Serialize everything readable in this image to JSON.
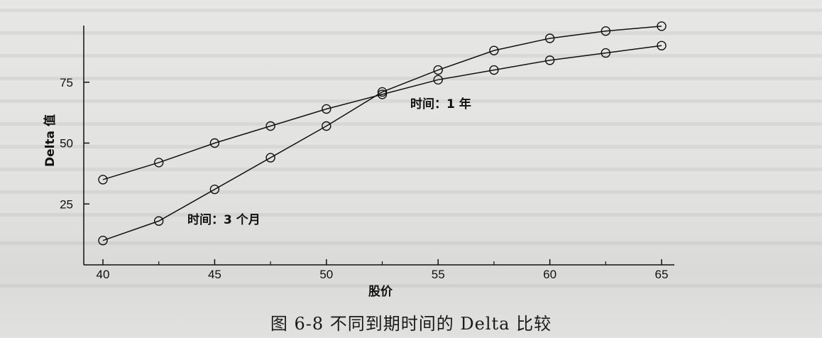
{
  "caption": "图 6-8   不同到期时间的 Delta 比较",
  "chart_data": {
    "type": "line",
    "xlabel": "股价",
    "ylabel": "Delta 值",
    "xlim": [
      40,
      65
    ],
    "ylim": [
      0,
      100
    ],
    "xticks": [
      40,
      45,
      50,
      55,
      60,
      65
    ],
    "yticks": [
      25,
      50,
      75
    ],
    "grid": false,
    "legend": "none",
    "series": [
      {
        "name": "时间：1 年",
        "x": [
          40,
          42.5,
          45,
          47.5,
          50,
          52.5,
          55,
          57.5,
          60,
          62.5,
          65
        ],
        "values": [
          35,
          42,
          50,
          57,
          64,
          70,
          76,
          80,
          84,
          87,
          90
        ]
      },
      {
        "name": "时间：3 个月",
        "x": [
          40,
          42.5,
          45,
          47.5,
          50,
          52.5,
          55,
          57.5,
          60,
          62.5,
          65
        ],
        "values": [
          10,
          18,
          31,
          44,
          57,
          71,
          80,
          88,
          93,
          96,
          98
        ]
      }
    ]
  }
}
